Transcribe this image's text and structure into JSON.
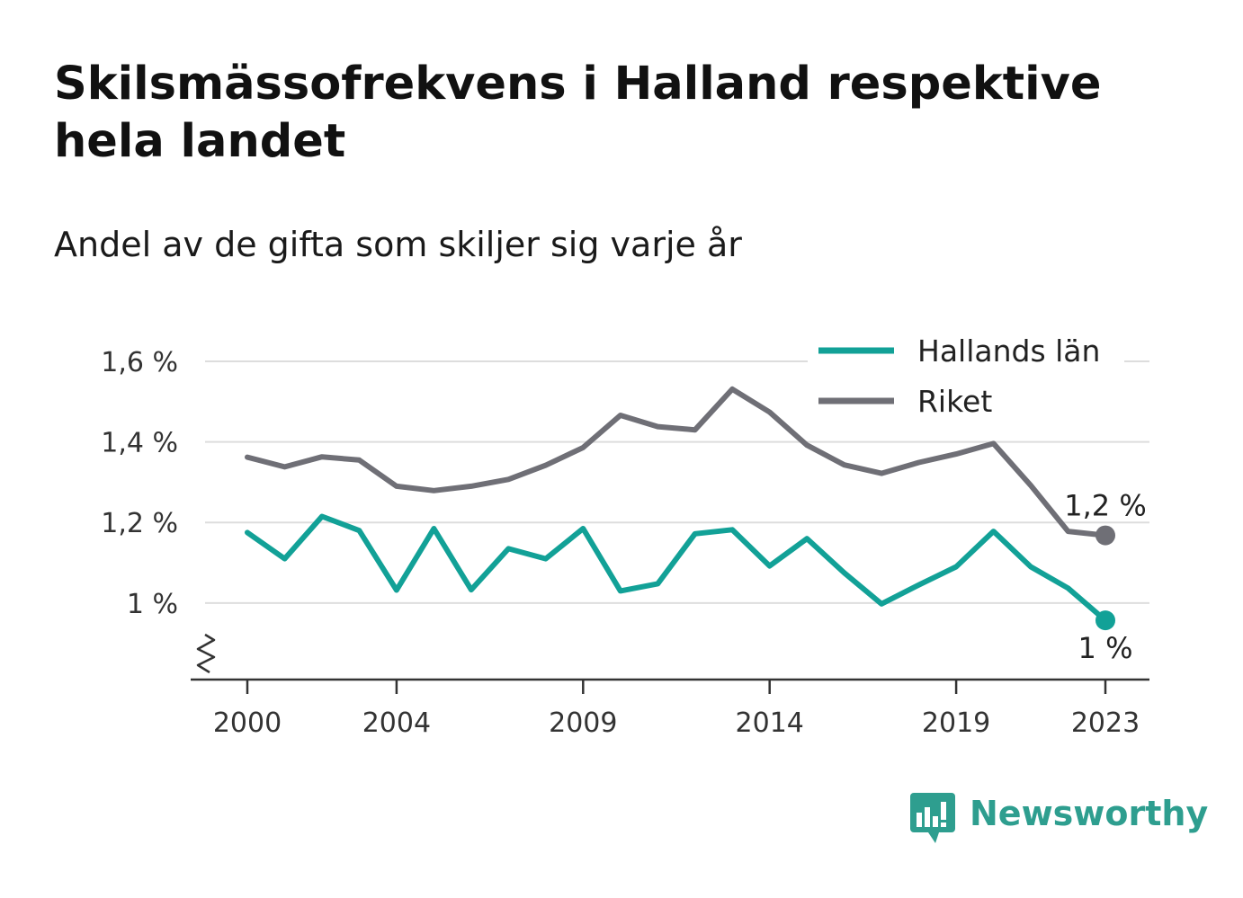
{
  "title": "Skilsmässofrekvens i Halland respektive hela landet",
  "subtitle": "Andel av de gifta som skiljer sig varje år",
  "brand": "Newsworthy",
  "colors": {
    "halland": "#12a197",
    "riket": "#6f6f76",
    "grid": "#dddddd",
    "axis": "#333333",
    "brand": "#2e9e8f"
  },
  "chart_data": {
    "type": "line",
    "x": [
      2000,
      2001,
      2002,
      2003,
      2004,
      2005,
      2006,
      2007,
      2008,
      2009,
      2010,
      2011,
      2012,
      2013,
      2014,
      2015,
      2016,
      2017,
      2018,
      2019,
      2020,
      2021,
      2022,
      2023
    ],
    "x_ticks": [
      2000,
      2004,
      2009,
      2014,
      2019,
      2023
    ],
    "x_tick_labels": [
      "2000",
      "2004",
      "2009",
      "2014",
      "2019",
      "2023"
    ],
    "y_ticks": [
      1.0,
      1.2,
      1.4,
      1.6
    ],
    "y_tick_labels": [
      "1 %",
      "1,2 %",
      "1,4 %",
      "1,6 %"
    ],
    "ylim": [
      0.81,
      1.6
    ],
    "y_axis_break": true,
    "grid": true,
    "legend_position": "top-right",
    "series": [
      {
        "name": "Hallands län",
        "color": "#12a197",
        "values": [
          1.175,
          1.11,
          1.215,
          1.18,
          1.032,
          1.185,
          1.033,
          1.135,
          1.11,
          1.185,
          1.03,
          1.048,
          1.172,
          1.182,
          1.092,
          1.16,
          1.075,
          0.998,
          1.045,
          1.09,
          1.178,
          1.09,
          1.037,
          0.957
        ],
        "end_label": "1 %"
      },
      {
        "name": "Riket",
        "color": "#6f6f76",
        "values": [
          1.362,
          1.338,
          1.363,
          1.355,
          1.29,
          1.279,
          1.29,
          1.307,
          1.342,
          1.386,
          1.466,
          1.438,
          1.43,
          1.531,
          1.474,
          1.392,
          1.343,
          1.322,
          1.349,
          1.37,
          1.396,
          1.292,
          1.178,
          1.168
        ],
        "end_label": "1,2 %"
      }
    ]
  }
}
